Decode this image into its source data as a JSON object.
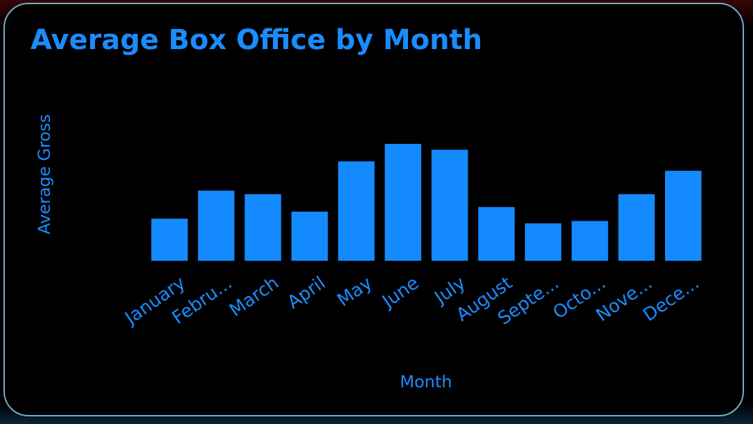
{
  "colors": {
    "bar": "#148aff",
    "text": "#1a8cff",
    "card_border": "#6fb1cc",
    "background": "#000000"
  },
  "chart_data": {
    "type": "bar",
    "title": "Average Box Office by Month",
    "xlabel": "Month",
    "ylabel": "Average Gross",
    "y_axis_visible": false,
    "grid": false,
    "legend": "none",
    "ylim": [
      0,
      100
    ],
    "categories": [
      "January",
      "Febru...",
      "March",
      "April",
      "May",
      "June",
      "July",
      "August",
      "Septe...",
      "Octo...",
      "Nove...",
      "Dece..."
    ],
    "values": [
      36,
      60,
      57,
      42,
      85,
      100,
      95,
      46,
      32,
      34,
      57,
      77
    ]
  }
}
